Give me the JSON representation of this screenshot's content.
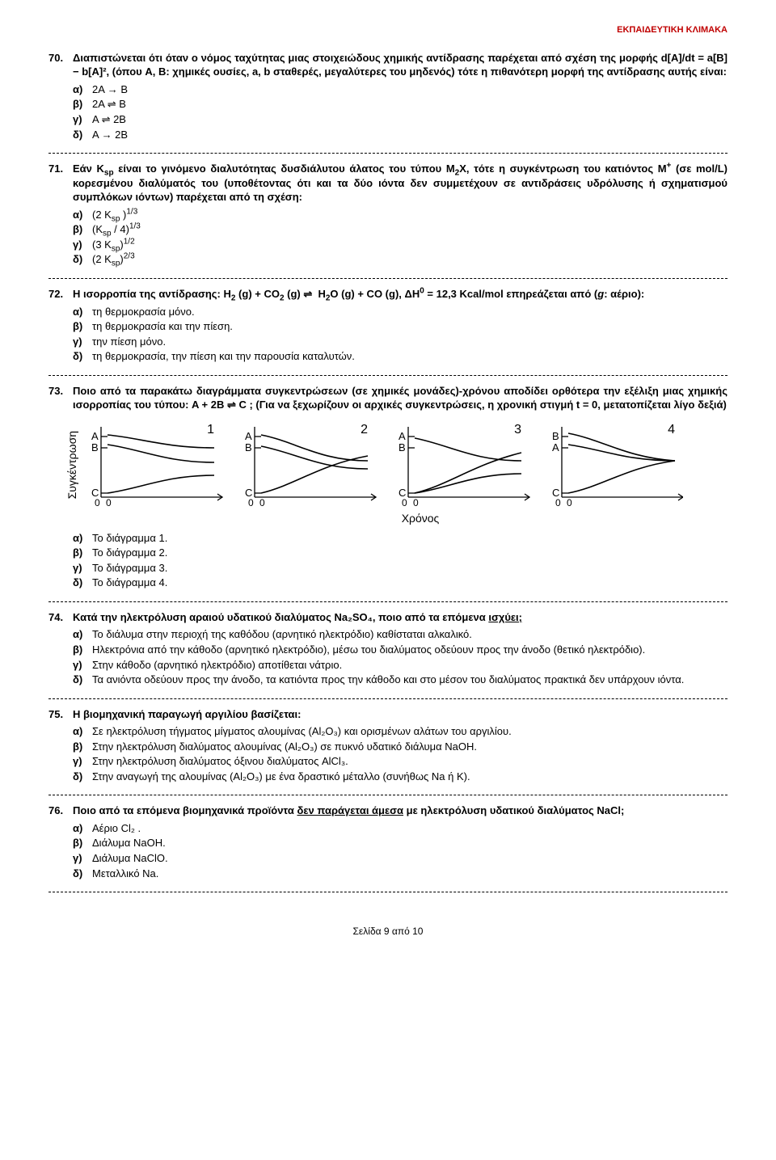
{
  "header_brand": "ΕΚΠΑΙΔΕΥΤΙΚΗ ΚΛΙΜΑΚΑ",
  "header_color": "#c00000",
  "q70": {
    "num": "70.",
    "text": "Διαπιστώνεται ότι όταν ο νόμος ταχύτητας μιας στοιχειώδους χημικής αντίδρασης παρέχεται από σχέση της μορφής d[A]/dt = a[B] − b[A]², (όπου A, B: χημικές ουσίες,  a, b σταθερές, μεγαλύτερες του μηδενός) τότε η πιθανότερη μορφή της αντίδρασης αυτής είναι:",
    "a": "2Α → Β",
    "b": "2Α ⇌ Β",
    "c": "Α ⇌ 2Β",
    "d": "Α → 2Β"
  },
  "q71": {
    "num": "71.",
    "text": "Εάν K_sp είναι το γινόμενο διαλυτότητας δυσδιάλυτου άλατος του τύπου M₂X, τότε η συγκέντρωση του κατιόντος M⁺ (σε mol/L) κορεσμένου διαλύματός του (υποθέτοντας ότι και τα δύο ιόντα δεν συμμετέχουν σε αντιδράσεις υδρόλυσης ή σχηματισμού συμπλόκων ιόντων) παρέχεται από τη σχέση:"
  },
  "q72": {
    "num": "72.",
    "text": "Η ισορροπία της αντίδρασης: H₂ (g) + CO₂ (g) ⇌  H₂O (g) + CO (g), ΔH⁰ = 12,3 Kcal/mol επηρεάζεται από (g: αέριο):",
    "a": "τη θερμοκρασία μόνο.",
    "b": "τη θερμοκρασία και την πίεση.",
    "c": "την πίεση μόνο.",
    "d": "τη θερμοκρασία, την πίεση και την παρουσία καταλυτών."
  },
  "q73": {
    "num": "73.",
    "text": "Ποιο από τα παρακάτω διαγράμματα συγκεντρώσεων (σε χημικές μονάδες)-χρόνου αποδίδει ορθότερα την εξέλιξη μιας χημικής ισορροπίας του τύπου: A + 2B  ⇌  C ; (Για να ξεχωρίζουν οι αρχικές συγκεντρώσεις, η χρονική στιγμή t = 0, μετατοπίζεται λίγο δεξιά)",
    "ylabel": "Συγκέντρωση",
    "xlabel": "Χρόνος",
    "a": "Το διάγραμμα 1.",
    "b": "Το διάγραμμα 2.",
    "c": "Το διάγραμμα 3.",
    "d": "Το διάγραμμα 4."
  },
  "q74": {
    "num": "74.",
    "text_pre": "Κατά την ηλεκτρόλυση αραιού υδατικού διαλύματος Na₂SO₄, ποιο από τα επόμενα ",
    "text_u": "ισχύει;",
    "a": "Το διάλυμα στην περιοχή της καθόδου (αρνητικό ηλεκτρόδιο) καθίσταται αλκαλικό.",
    "b": "Ηλεκτρόνια από την κάθοδο (αρνητικό ηλεκτρόδιο), μέσω του διαλύματος οδεύουν προς την άνοδο (θετικό ηλεκτρόδιο).",
    "c": "Στην κάθοδο (αρνητικό ηλεκτρόδιο) αποτίθεται νάτριο.",
    "d": "Τα ανιόντα οδεύουν προς την άνοδο, τα κατιόντα προς την κάθοδο και στο μέσον του διαλύματος πρακτικά δεν υπάρχουν ιόντα."
  },
  "q75": {
    "num": "75.",
    "text": "Η βιομηχανική παραγωγή αργιλίου βασίζεται:",
    "a": "Σε ηλεκτρόλυση τήγματος μίγματος αλουμίνας (Al₂O₃)  και ορισμένων αλάτων του αργιλίου.",
    "b": "Στην ηλεκτρόλυση διαλύματος αλουμίνας (Al₂O₃) σε πυκνό υδατικό διάλυμα NaOH.",
    "c": "Στην ηλεκτρόλυση διαλύματος όξινου διαλύματος AlCl₃.",
    "d": "Στην αναγωγή της αλουμίνας (Al₂O₃) με ένα δραστικό μέταλλο (συνήθως Na ή K)."
  },
  "q76": {
    "num": "76.",
    "text_pre": "Ποιο από τα επόμενα βιομηχανικά προϊόντα ",
    "text_u": "δεν παράγεται άμεσα",
    "text_post": " με ηλεκτρόλυση υδατικού διαλύματος NaCl;",
    "a": "Αέριο Cl₂ .",
    "b": "Διάλυμα NaOH.",
    "c": "Διάλυμα NaClO.",
    "d": "Μεταλλικό Na."
  },
  "labels": {
    "a": "α)",
    "b": "β)",
    "c": "γ)",
    "d": "δ)"
  },
  "footer": "Σελίδα 9 από 10",
  "diagram": {
    "stroke": "#000000",
    "stroke_w": 1.3,
    "font": "14px",
    "panels": [
      {
        "id": "1",
        "letters": [
          "A",
          "B",
          "C"
        ],
        "curves": [
          "M28 18 C70 22 100 34 160 34",
          "M28 30 C70 36 100 52 160 52",
          "M28 90 C70 84 100 68 160 68"
        ]
      },
      {
        "id": "2",
        "letters": [
          "A",
          "B",
          "C"
        ],
        "curves": [
          "M28 18 C70 26 100 50 160 50",
          "M28 32 C70 40 100 60 160 60",
          "M28 90 C70 80 100 55 160 44"
        ],
        "cross": true
      },
      {
        "id": "3",
        "letters": [
          "A",
          "B",
          "C"
        ],
        "curves": [
          "M28 22 C70 30 100 50 160 50",
          "M28 90 C70 80 100 55 160 40",
          "M28 90 C70 84 100 66 160 66"
        ],
        "cross": true
      },
      {
        "id": "4",
        "letters": [
          "B",
          "A",
          "C"
        ],
        "curves": [
          "M28 16 C70 24 100 46 160 50",
          "M28 30 C70 36 100 50 160 50",
          "M28 90 C70 82 100 58 160 50"
        ],
        "cross": true
      }
    ]
  }
}
